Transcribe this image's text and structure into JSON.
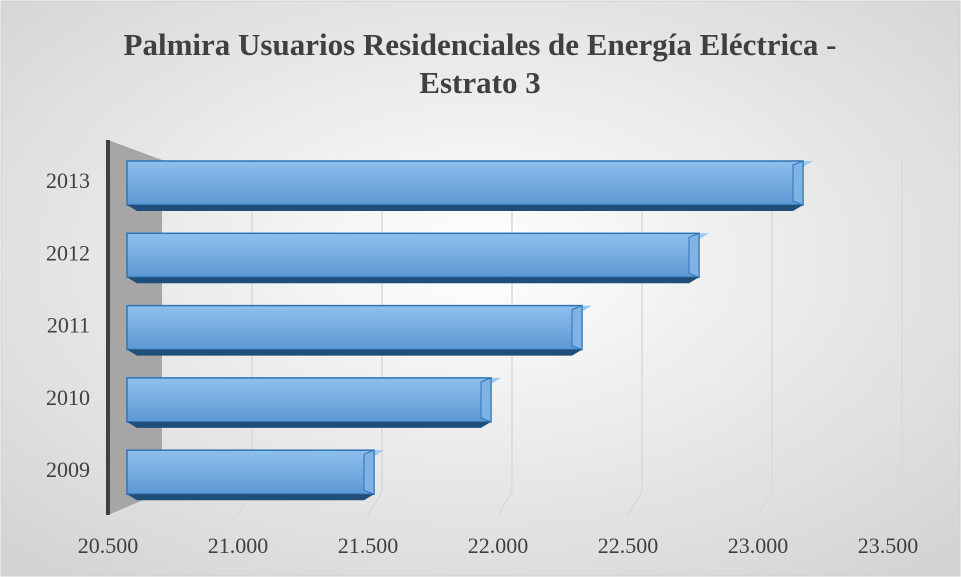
{
  "chart_data": {
    "type": "bar",
    "orientation": "horizontal",
    "title": "Palmira Usuarios Residenciales de Energía Eléctrica - Estrato 3",
    "categories": [
      "2009",
      "2010",
      "2011",
      "2012",
      "2013"
    ],
    "values": [
      21450,
      21900,
      22250,
      22700,
      23100
    ],
    "color": "#5b9bd5",
    "xlim": [
      20500,
      23500
    ],
    "xticks": [
      {
        "value": 20500,
        "label": "20.500"
      },
      {
        "value": 21000,
        "label": "21.000"
      },
      {
        "value": 21500,
        "label": "21.500"
      },
      {
        "value": 22000,
        "label": "22.000"
      },
      {
        "value": 22500,
        "label": "22.500"
      },
      {
        "value": 23000,
        "label": "23.000"
      },
      {
        "value": 23500,
        "label": "23.500"
      }
    ],
    "grid": true
  }
}
